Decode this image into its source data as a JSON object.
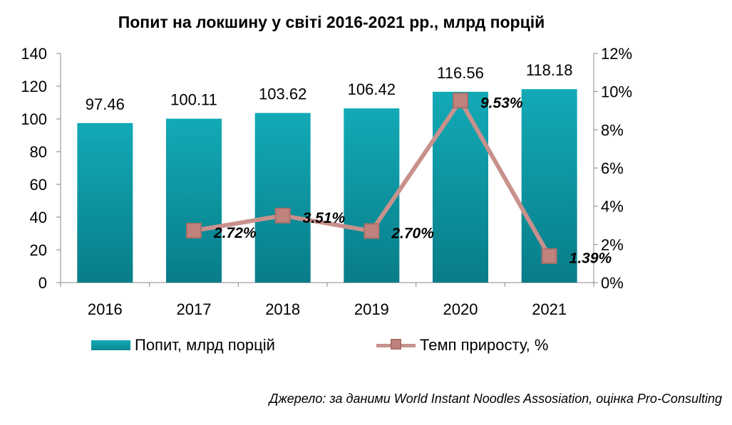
{
  "chart_data": {
    "type": "bar+line",
    "title": "Попит на локшину у світі 2016-2021 рр., млрд порцій",
    "categories": [
      "2016",
      "2017",
      "2018",
      "2019",
      "2020",
      "2021"
    ],
    "series": [
      {
        "name": "Попит, млрд порцій",
        "type": "bar",
        "axis": "left",
        "values": [
          97.46,
          100.11,
          103.62,
          106.42,
          116.56,
          118.18
        ],
        "labels": [
          "97.46",
          "100.11",
          "103.62",
          "106.42",
          "116.56",
          "118.18"
        ],
        "color": "#0e9aa6"
      },
      {
        "name": "Темп приросту, %",
        "type": "line",
        "axis": "right",
        "values": [
          null,
          2.72,
          3.51,
          2.7,
          9.53,
          1.39
        ],
        "labels": [
          null,
          "2.72%",
          "3.51%",
          "2.70%",
          "9.53%",
          "1.39%"
        ],
        "color": "#c8918c"
      }
    ],
    "y_left": {
      "min": 0,
      "max": 140,
      "ticks": [
        "0",
        "20",
        "40",
        "60",
        "80",
        "100",
        "120",
        "140"
      ]
    },
    "y_right": {
      "min": 0,
      "max": 12,
      "ticks": [
        "0%",
        "2%",
        "4%",
        "6%",
        "8%",
        "10%",
        "12%"
      ]
    },
    "grid": false,
    "legend_position": "bottom"
  },
  "source": "Джерело: за даними World Instant Noodles Assosiation, оцінка Pro-Consulting"
}
